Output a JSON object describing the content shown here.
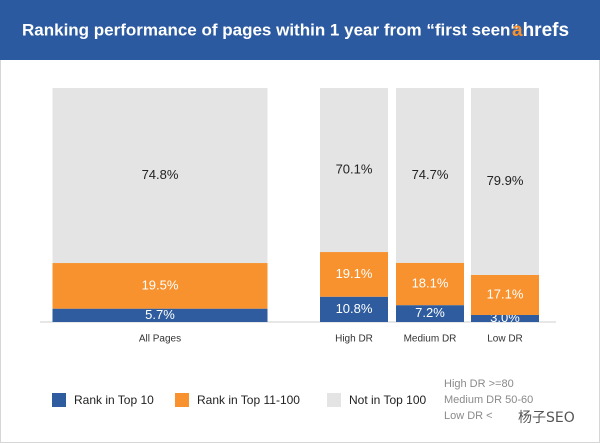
{
  "chart_data": {
    "type": "bar",
    "stacked": true,
    "title": "Ranking performance of pages within 1 year from “first seen“",
    "brand": [
      "a",
      "hrefs"
    ],
    "categories": [
      "All Pages",
      "High DR",
      "Medium DR",
      "Low DR"
    ],
    "series": [
      {
        "name": "Rank in Top 10",
        "color": "#2e5c9e",
        "values": [
          5.7,
          10.8,
          7.2,
          3.0
        ],
        "value_labels": [
          "5.7%",
          "10.8%",
          "7.2%",
          "3.0%"
        ]
      },
      {
        "name": "Rank in Top 11-100",
        "color": "#f7922f",
        "values": [
          19.5,
          19.1,
          18.1,
          17.1
        ],
        "value_labels": [
          "19.5%",
          "19.1%",
          "18.1%",
          "17.1%"
        ]
      },
      {
        "name": "Not in Top 100",
        "color": "#e4e4e4",
        "values": [
          74.8,
          70.1,
          74.7,
          79.9
        ],
        "value_labels": [
          "74.8%",
          "70.1%",
          "74.7%",
          "79.9%"
        ]
      }
    ],
    "ylim": [
      0,
      100
    ],
    "notes": [
      "High DR >=80",
      "Medium DR 50-60",
      "Low DR <"
    ],
    "watermark": "杨子SEO"
  }
}
